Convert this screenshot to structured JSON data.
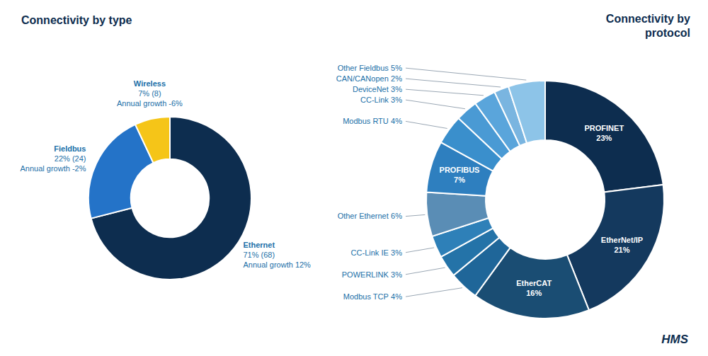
{
  "chart_data": [
    {
      "type": "donut",
      "title": "Connectivity by type",
      "categories": [
        "Ethernet",
        "Fieldbus",
        "Wireless"
      ],
      "values": [
        71,
        22,
        7
      ],
      "value_labels": [
        "71% (68)",
        "22% (24)",
        "7% (8)"
      ],
      "annotations": [
        "Annual growth 12%",
        "Annual growth -2%",
        "Annual growth -6%"
      ],
      "colors": [
        "#0d2d4f",
        "#2473c8",
        "#f5c518"
      ],
      "data_labels": true
    },
    {
      "type": "donut",
      "title": "Connectivity by\nprotocol",
      "categories": [
        "PROFINET",
        "EtherNet/IP",
        "EtherCAT",
        "Modbus TCP",
        "POWERLINK",
        "CC-Link IE",
        "Other Ethernet",
        "PROFIBUS",
        "Modbus RTU",
        "CC-Link",
        "DeviceNet",
        "CAN/CANopen",
        "Other Fieldbus"
      ],
      "values": [
        23,
        21,
        16,
        4,
        3,
        3,
        6,
        7,
        4,
        3,
        3,
        2,
        5
      ],
      "value_labels": [
        "23%",
        "21%",
        "16%",
        "4%",
        "3%",
        "3%",
        "6%",
        "7%",
        "4%",
        "3%",
        "3%",
        "2%",
        "5%"
      ],
      "colors": [
        "#0d2d4f",
        "#14395e",
        "#1a4d73",
        "#1f6699",
        "#2473a8",
        "#2e80b8",
        "#5a8db5",
        "#2e7fbf",
        "#3a8fcc",
        "#4a9ad4",
        "#5aa5db",
        "#7ab5e0",
        "#8dc4e8"
      ],
      "data_labels": true,
      "annotations": [
        "HMS"
      ]
    }
  ]
}
